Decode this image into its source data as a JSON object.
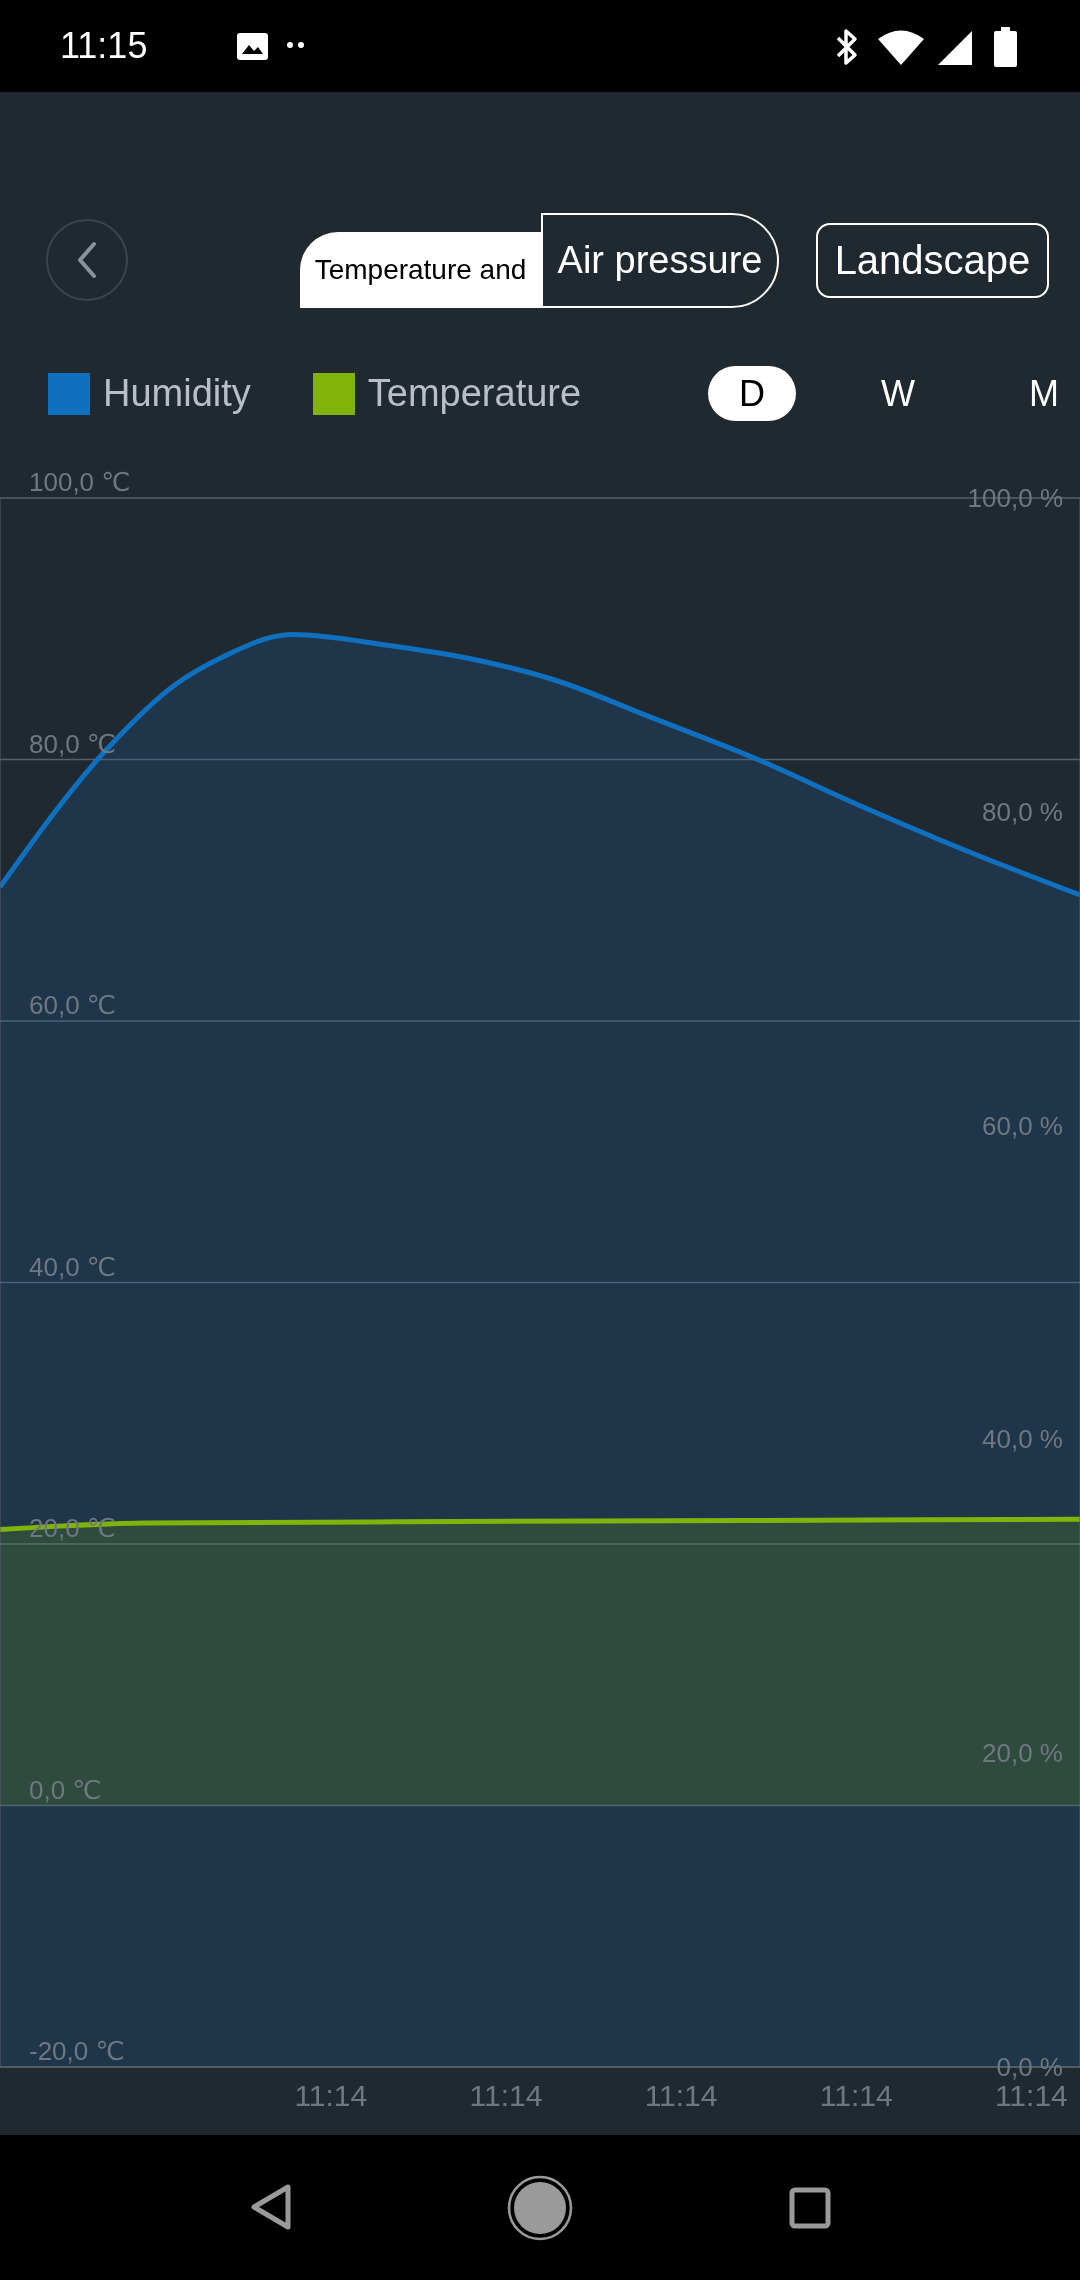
{
  "chart_data": {
    "type": "area",
    "series": [
      {
        "name": "Humidity",
        "color": "#1070c0",
        "axis": "y2",
        "x": [
          11.2306,
          11.2317,
          11.2324,
          11.2329,
          11.2336,
          11.2346,
          11.2354,
          11.2363,
          11.2373,
          11.2384,
          11.2394,
          11.2405,
          11.2417
        ],
        "values": [
          75.2,
          84.0,
          88.1,
          89.9,
          91.3,
          90.6,
          89.8,
          88.4,
          86.0,
          83.3,
          80.5,
          77.6,
          74.7
        ]
      },
      {
        "name": "Temperature",
        "color": "#80b40a",
        "x": [
          11.2306,
          11.2321,
          11.2347,
          11.2383,
          11.2417
        ],
        "values": [
          21.1,
          21.6,
          21.7,
          21.8,
          21.9
        ]
      }
    ],
    "xlim": [
      11.2306,
      11.2417
    ],
    "xticks": [
      {
        "value": 11.234,
        "label": "11:14"
      },
      {
        "value": 11.2358,
        "label": "11:14"
      },
      {
        "value": 11.2376,
        "label": "11:14"
      },
      {
        "value": 11.2394,
        "label": "11:14"
      },
      {
        "value": 11.2412,
        "label": "11:14"
      }
    ],
    "ylim": [
      -20,
      100
    ],
    "yticks": [
      {
        "value": -20,
        "label": "-20,0 ℃"
      },
      {
        "value": 0,
        "label": "0,0 ℃"
      },
      {
        "value": 20,
        "label": "20,0 ℃"
      },
      {
        "value": 40,
        "label": "40,0 ℃"
      },
      {
        "value": 60,
        "label": "60,0 ℃"
      },
      {
        "value": 80,
        "label": "80,0 ℃"
      },
      {
        "value": 100,
        "label": "100,0 ℃"
      }
    ],
    "y2lim": [
      0,
      100
    ],
    "y2ticks": [
      {
        "value": 0,
        "label": "0,0 %"
      },
      {
        "value": 20,
        "label": "20,0 %"
      },
      {
        "value": 40,
        "label": "40,0 %"
      },
      {
        "value": 60,
        "label": "60,0 %"
      },
      {
        "value": 80,
        "label": "80,0 %"
      },
      {
        "value": 100,
        "label": "100,0 %"
      }
    ],
    "grid": "y",
    "legend": "top left",
    "annotations": [
      "11:15",
      "Temperature and",
      "Air pressure",
      "Landscape",
      "D",
      "W",
      "M"
    ]
  }
}
